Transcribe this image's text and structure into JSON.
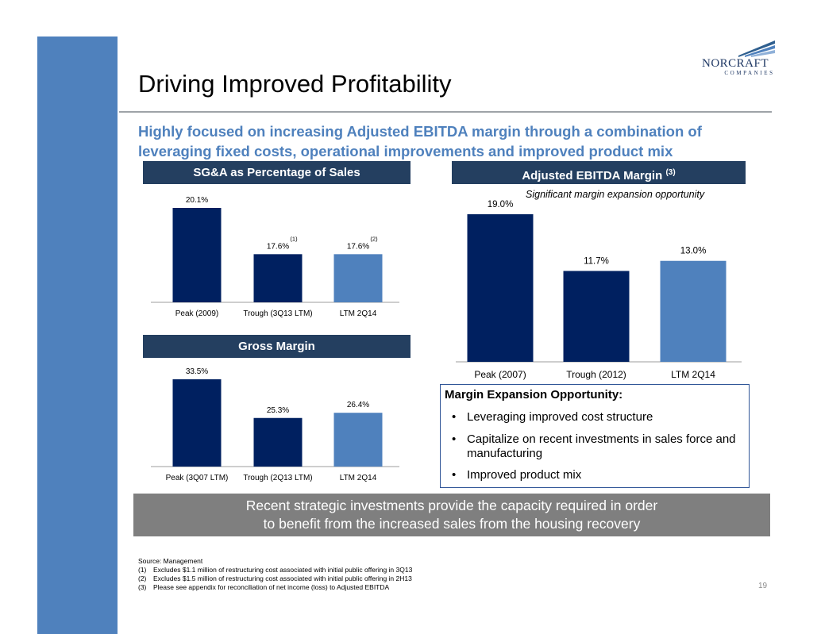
{
  "slide": {
    "title": "Driving Improved Profitability",
    "subtitle_line1": "Highly focused on increasing Adjusted EBITDA margin through a combination of",
    "subtitle_line2": "leveraging fixed costs, operational improvements and improved product mix",
    "page_number": "19"
  },
  "logo": {
    "name": "NORCRAFT",
    "tagline": "COMPANIES"
  },
  "colors": {
    "sidebar": "#4f81bd",
    "header": "#243f60",
    "bar_dark": "#002060",
    "bar_light": "#4f81bd",
    "accent_text": "#4f81bd"
  },
  "panels": {
    "sga_title": "SG&A as Percentage of Sales",
    "gm_title": "Gross Margin",
    "ebitda_title": "Adjusted EBITDA Margin",
    "ebitda_title_note": "(3)",
    "ebitda_annotation": "Significant margin expansion opportunity"
  },
  "chart_data": [
    {
      "type": "bar",
      "title": "SG&A as Percentage of Sales",
      "categories": [
        "Peak (2009)",
        "Trough (3Q13 LTM)",
        "LTM 2Q14"
      ],
      "values": [
        20.1,
        17.6,
        17.6
      ],
      "labels": [
        "20.1%",
        "17.6%",
        "17.6%"
      ],
      "notes": [
        "",
        "(1)",
        "(2)"
      ],
      "colors": [
        "#002060",
        "#002060",
        "#4f81bd"
      ],
      "ylim": [
        15.0,
        20.1
      ]
    },
    {
      "type": "bar",
      "title": "Gross Margin",
      "categories": [
        "Peak (3Q07 LTM)",
        "Trough (2Q13 LTM)",
        "LTM 2Q14"
      ],
      "values": [
        33.5,
        25.3,
        26.4
      ],
      "labels": [
        "33.5%",
        "25.3%",
        "26.4%"
      ],
      "notes": [
        "",
        "",
        ""
      ],
      "colors": [
        "#002060",
        "#002060",
        "#4f81bd"
      ],
      "ylim": [
        15.0,
        33.5
      ]
    },
    {
      "type": "bar",
      "title": "Adjusted EBITDA Margin",
      "categories": [
        "Peak (2007)",
        "Trough (2012)",
        "LTM 2Q14"
      ],
      "values": [
        19.0,
        11.7,
        13.0
      ],
      "labels": [
        "19.0%",
        "11.7%",
        "13.0%"
      ],
      "notes": [
        "",
        "",
        ""
      ],
      "colors": [
        "#002060",
        "#002060",
        "#4f81bd"
      ],
      "ylim": [
        0,
        19.0
      ]
    }
  ],
  "opportunity": {
    "title": "Margin Expansion Opportunity:",
    "bullet_char": "•",
    "items": [
      "Leveraging improved cost structure",
      "Capitalize on recent investments in sales force and manufacturing",
      "Improved product mix"
    ]
  },
  "banner": {
    "line1": "Recent strategic investments provide the capacity required in order",
    "line2": "to benefit from the increased sales from the housing recovery"
  },
  "footnotes": {
    "source": "Source: Management",
    "items": [
      {
        "mark": "(1)",
        "text": "Excludes $1.1 million of restructuring cost associated with initial public offering in 3Q13"
      },
      {
        "mark": "(2)",
        "text": "Excludes $1.5 million of restructuring cost associated with initial public offering in 2H13"
      },
      {
        "mark": "(3)",
        "text": "Please see appendix for reconciliation of net income (loss) to Adjusted EBITDA"
      }
    ]
  }
}
